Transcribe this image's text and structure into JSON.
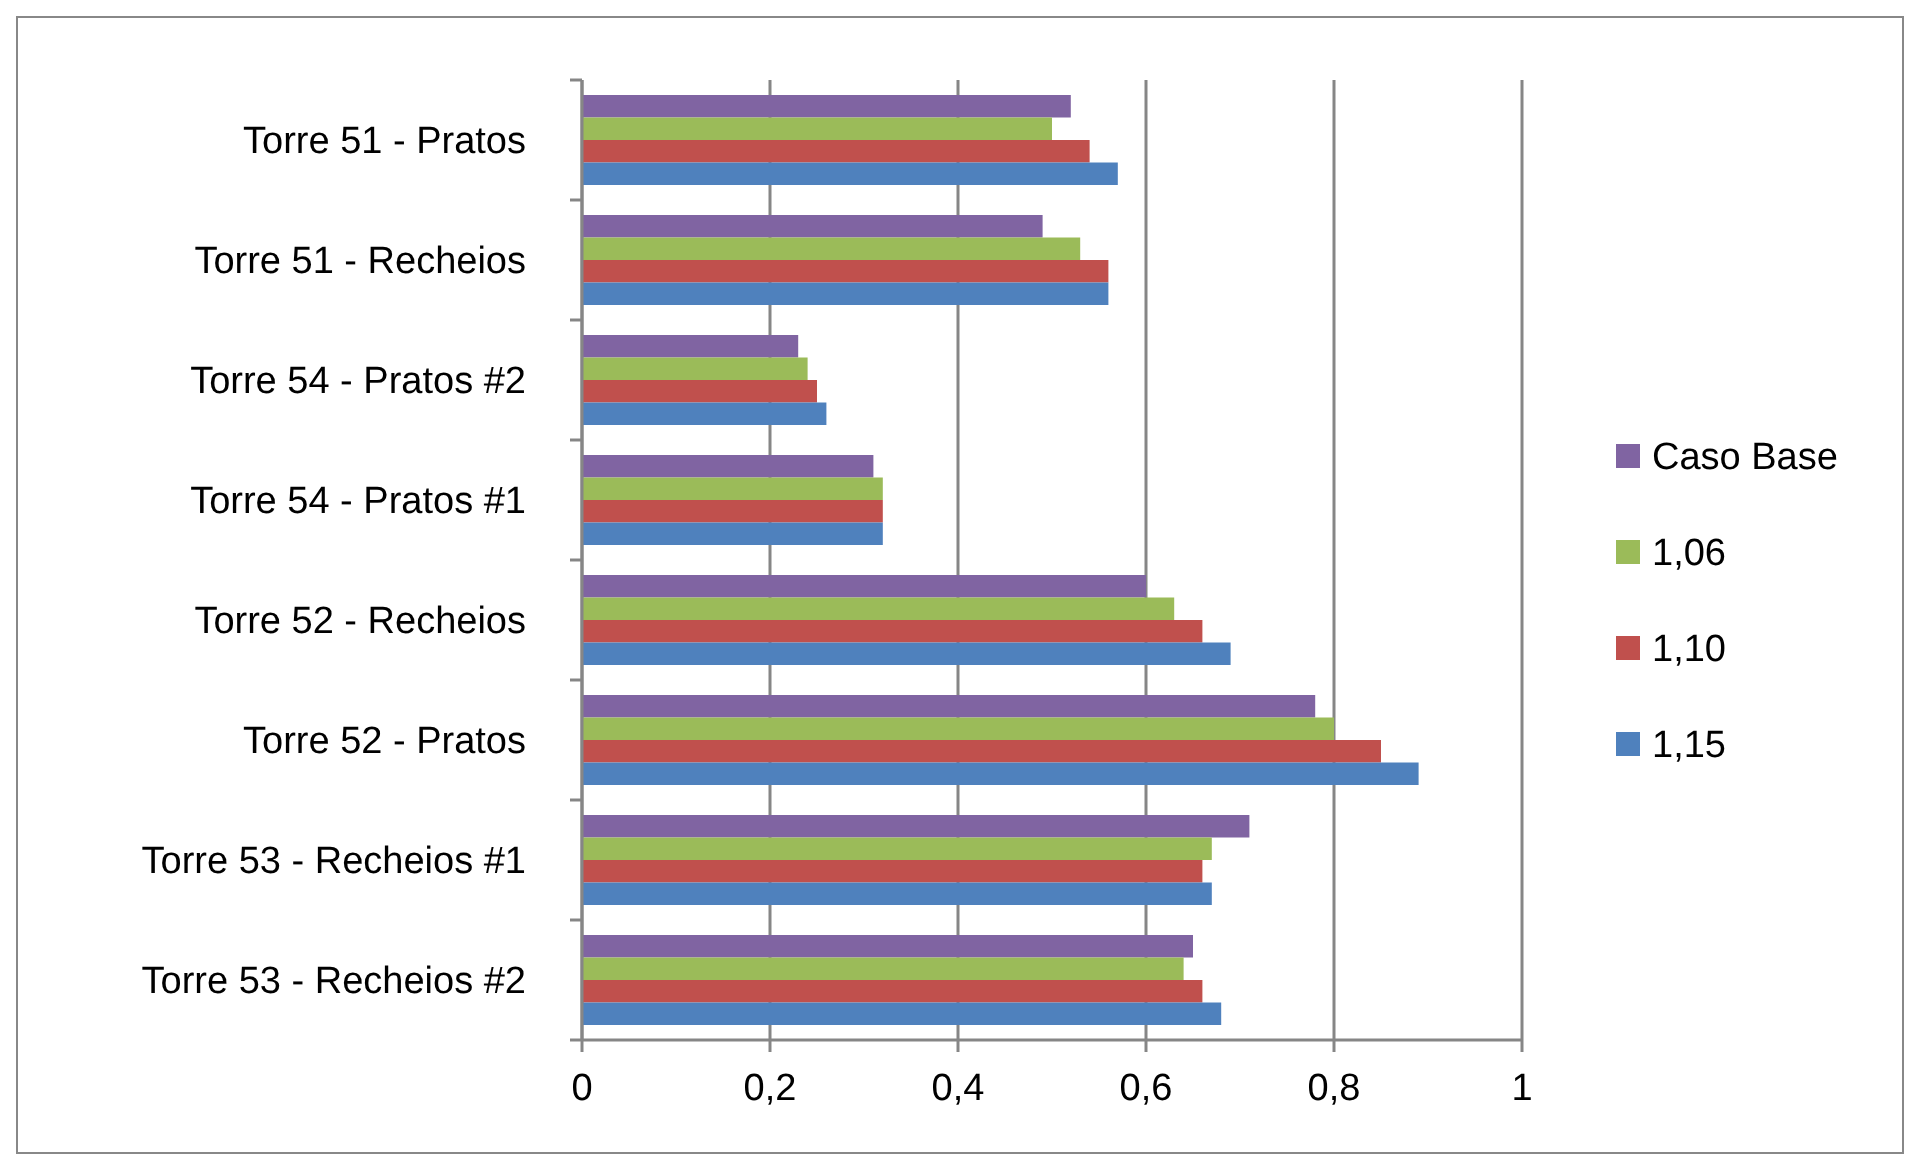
{
  "chart_data": {
    "type": "bar",
    "orientation": "horizontal",
    "categories": [
      "Torre 51 - Pratos",
      "Torre 51 - Recheios",
      "Torre 54 - Pratos #2",
      "Torre 54 - Pratos #1",
      "Torre 52 - Recheios",
      "Torre 52 - Pratos",
      "Torre 53 - Recheios #1",
      "Torre 53 - Recheios #2"
    ],
    "series": [
      {
        "name": "Caso Base",
        "color": "#8064a2",
        "values": [
          0.52,
          0.49,
          0.23,
          0.31,
          0.6,
          0.78,
          0.71,
          0.65
        ]
      },
      {
        "name": "1,06",
        "color": "#9bbb59",
        "values": [
          0.5,
          0.53,
          0.24,
          0.32,
          0.63,
          0.8,
          0.67,
          0.64
        ]
      },
      {
        "name": "1,10",
        "color": "#c0504d",
        "values": [
          0.54,
          0.56,
          0.25,
          0.32,
          0.66,
          0.85,
          0.66,
          0.66
        ]
      },
      {
        "name": "1,15",
        "color": "#4f81bd",
        "values": [
          0.57,
          0.56,
          0.26,
          0.32,
          0.69,
          0.89,
          0.67,
          0.68
        ]
      }
    ],
    "xlim": [
      0,
      1
    ],
    "xticks": [
      0,
      {
        "value": 0.2,
        "label": "0,2"
      },
      {
        "value": 0.4,
        "label": "0,4"
      },
      {
        "value": 0.6,
        "label": "0,6"
      },
      {
        "value": 0.8,
        "label": "0,8"
      },
      1
    ],
    "grid": "x",
    "legend": "right"
  }
}
